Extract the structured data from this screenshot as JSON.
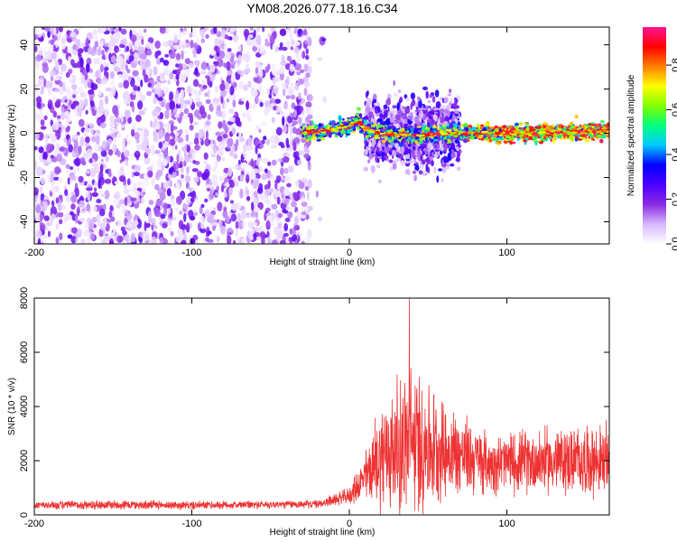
{
  "title": "YM08.2026.077.18.16.C34",
  "chart_data": [
    {
      "type": "heatmap",
      "name": "spectrogram",
      "xlabel": "Height of straight line (km)",
      "ylabel": "Frequency (Hz)",
      "xlim": [
        -200,
        165
      ],
      "ylim": [
        -50,
        48
      ],
      "xticks": [
        -200,
        -100,
        0,
        100
      ],
      "yticks": [
        -40,
        -20,
        0,
        20,
        40
      ],
      "colorbar": {
        "label": "Normalized spectral amplitude",
        "range": [
          0,
          0.97
        ],
        "ticks": [
          0.0,
          0.2,
          0.4,
          0.6,
          0.8
        ],
        "tick_labels": [
          "0.0",
          "0.2",
          "0.4",
          "0.6",
          "0.8"
        ],
        "colormap": [
          "#ffffff",
          "#d8b8ff",
          "#8a2be2",
          "#4b00ff",
          "#0000ff",
          "#00c8ff",
          "#00ff7f",
          "#80ff00",
          "#ffff00",
          "#ff8000",
          "#ff0000",
          "#ff1493"
        ]
      },
      "features": {
        "noise_region_x": [
          -200,
          -25
        ],
        "noise_amplitude_range": [
          0.02,
          0.25
        ],
        "signal_centerline": [
          {
            "x": -30,
            "f": 0
          },
          {
            "x": -15,
            "f": 1
          },
          {
            "x": 0,
            "f": 3
          },
          {
            "x": 5,
            "f": 6
          },
          {
            "x": 10,
            "f": 2
          },
          {
            "x": 20,
            "f": 0
          },
          {
            "x": 40,
            "f": -1
          },
          {
            "x": 60,
            "f": 0
          },
          {
            "x": 100,
            "f": 0
          },
          {
            "x": 165,
            "f": 1
          }
        ],
        "spread_region_x": [
          10,
          70
        ],
        "spread_f_range": [
          -22,
          15
        ],
        "peak_amplitude_x": [
          75,
          165
        ]
      }
    },
    {
      "type": "line",
      "name": "snr",
      "xlabel": "Height of straight line (km)",
      "ylabel": "SNR (10 * v/v)",
      "xlim": [
        -200,
        165
      ],
      "ylim": [
        0,
        8000
      ],
      "xticks": [
        -200,
        -100,
        0,
        100
      ],
      "yticks": [
        0,
        2000,
        4000,
        6000,
        8000
      ],
      "color": "#ee3333",
      "envelope": [
        {
          "x": -200,
          "base": 350,
          "spread": 250
        },
        {
          "x": -150,
          "base": 380,
          "spread": 300
        },
        {
          "x": -100,
          "base": 350,
          "spread": 250
        },
        {
          "x": -20,
          "base": 400,
          "spread": 250
        },
        {
          "x": 0,
          "base": 700,
          "spread": 500
        },
        {
          "x": 10,
          "base": 1400,
          "spread": 1500
        },
        {
          "x": 20,
          "base": 2200,
          "spread": 3500
        },
        {
          "x": 40,
          "base": 2700,
          "spread": 4800
        },
        {
          "x": 60,
          "base": 2400,
          "spread": 3000
        },
        {
          "x": 90,
          "base": 1900,
          "spread": 1800
        },
        {
          "x": 120,
          "base": 2000,
          "spread": 2000
        },
        {
          "x": 165,
          "base": 2000,
          "spread": 2200
        }
      ],
      "max_value": 8000
    }
  ]
}
